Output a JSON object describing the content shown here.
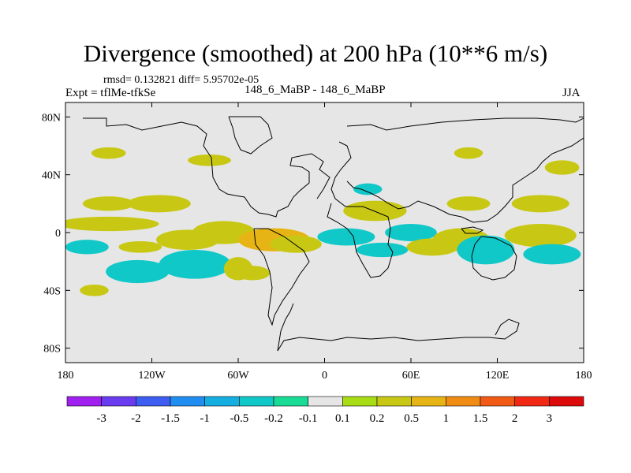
{
  "chart_data": {
    "type": "heatmap",
    "title": "Divergence (smoothed) at 200 hPa (10**6 m/s)",
    "stats_text": "rmsd= 0.132821  diff= 5.95702e-05",
    "left_label": "Expt = tflMe-tfkSe",
    "center_label": "148_6_MaBP - 148_6_MaBP",
    "right_label": "JJA",
    "x_ticks": [
      "180",
      "120W",
      "60W",
      "0",
      "60E",
      "120E",
      "180"
    ],
    "y_ticks": [
      "80N",
      "40N",
      "0",
      "40S",
      "80S"
    ],
    "xlim": [
      -180,
      180
    ],
    "ylim": [
      -90,
      90
    ],
    "colorbar": {
      "labels": [
        "-3",
        "-2",
        "-1.5",
        "-1",
        "-0.5",
        "-0.2",
        "-0.1",
        "0.1",
        "0.2",
        "0.5",
        "1",
        "1.5",
        "2",
        "3"
      ],
      "colors": [
        "#a020f0",
        "#6a3cf0",
        "#3d5ef0",
        "#1f8ef0",
        "#14aee0",
        "#11c8c8",
        "#18dc96",
        "#e6e6e6",
        "#a8dc14",
        "#c8c814",
        "#e6b414",
        "#f08c14",
        "#f05a14",
        "#f02814",
        "#dc0a0a"
      ]
    },
    "background_color": "#e6e6e6",
    "anomalies": [
      {
        "lon": -150,
        "lat": 20,
        "rx": 18,
        "ry": 5,
        "value": 0.3
      },
      {
        "lon": -115,
        "lat": 20,
        "rx": 22,
        "ry": 6,
        "value": 0.3
      },
      {
        "lon": -150,
        "lat": 6,
        "rx": 35,
        "ry": 5,
        "value": 0.3
      },
      {
        "lon": -165,
        "lat": -10,
        "rx": 15,
        "ry": 5,
        "value": -0.3
      },
      {
        "lon": -128,
        "lat": -10,
        "rx": 15,
        "ry": 4,
        "value": 0.3
      },
      {
        "lon": -130,
        "lat": -27,
        "rx": 22,
        "ry": 8,
        "value": -0.3
      },
      {
        "lon": -95,
        "lat": -5,
        "rx": 22,
        "ry": 7,
        "value": 0.3
      },
      {
        "lon": -90,
        "lat": -22,
        "rx": 25,
        "ry": 10,
        "value": -0.3
      },
      {
        "lon": -60,
        "lat": -25,
        "rx": 10,
        "ry": 8,
        "value": 0.3
      },
      {
        "lon": -70,
        "lat": 0,
        "rx": 22,
        "ry": 8,
        "value": 0.3
      },
      {
        "lon": -35,
        "lat": -5,
        "rx": 25,
        "ry": 8,
        "value": 0.5
      },
      {
        "lon": -20,
        "lat": -8,
        "rx": 18,
        "ry": 6,
        "value": 0.3
      },
      {
        "lon": 15,
        "lat": -3,
        "rx": 20,
        "ry": 6,
        "value": -0.3
      },
      {
        "lon": 40,
        "lat": -12,
        "rx": 18,
        "ry": 5,
        "value": -0.3
      },
      {
        "lon": 35,
        "lat": 15,
        "rx": 22,
        "ry": 7,
        "value": 0.3
      },
      {
        "lon": 60,
        "lat": 0,
        "rx": 18,
        "ry": 6,
        "value": -0.3
      },
      {
        "lon": 75,
        "lat": -10,
        "rx": 18,
        "ry": 6,
        "value": 0.3
      },
      {
        "lon": 95,
        "lat": -5,
        "rx": 20,
        "ry": 8,
        "value": 0.3
      },
      {
        "lon": 112,
        "lat": -12,
        "rx": 20,
        "ry": 10,
        "value": -0.3
      },
      {
        "lon": 150,
        "lat": -2,
        "rx": 25,
        "ry": 8,
        "value": 0.3
      },
      {
        "lon": 158,
        "lat": -15,
        "rx": 20,
        "ry": 7,
        "value": -0.3
      },
      {
        "lon": 150,
        "lat": 20,
        "rx": 20,
        "ry": 6,
        "value": 0.3
      },
      {
        "lon": 100,
        "lat": 20,
        "rx": 15,
        "ry": 5,
        "value": 0.3
      },
      {
        "lon": -150,
        "lat": 55,
        "rx": 12,
        "ry": 4,
        "value": 0.3
      },
      {
        "lon": -80,
        "lat": 50,
        "rx": 15,
        "ry": 4,
        "value": 0.3
      },
      {
        "lon": 100,
        "lat": 55,
        "rx": 10,
        "ry": 4,
        "value": 0.3
      },
      {
        "lon": 165,
        "lat": 45,
        "rx": 12,
        "ry": 5,
        "value": 0.3
      },
      {
        "lon": -160,
        "lat": -40,
        "rx": 10,
        "ry": 4,
        "value": 0.3
      },
      {
        "lon": -50,
        "lat": -28,
        "rx": 12,
        "ry": 5,
        "value": 0.3
      },
      {
        "lon": 30,
        "lat": 30,
        "rx": 10,
        "ry": 4,
        "value": -0.3
      }
    ]
  }
}
